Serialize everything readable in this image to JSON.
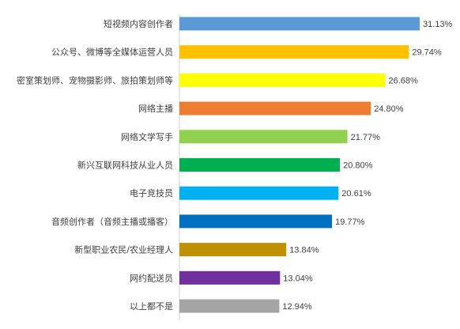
{
  "chart_data": {
    "type": "bar",
    "orientation": "horizontal",
    "categories": [
      "短视频内容创作者",
      "公众号、微博等全媒体运营人员",
      "密室策划师、宠物摄影师、旅拍策划师等",
      "网络主播",
      "网络文学写手",
      "新兴互联网科技从业人员",
      "电子竞技员",
      "音频创作者（音频主播或播客）",
      "新型职业农民/农业经理人",
      "网约配送员",
      "以上都不是"
    ],
    "values": [
      31.13,
      29.74,
      26.68,
      24.8,
      21.77,
      20.8,
      20.61,
      19.77,
      13.84,
      13.04,
      12.94
    ],
    "value_labels": [
      "31.13%",
      "29.74%",
      "26.68%",
      "24.80%",
      "21.77%",
      "20.80%",
      "20.61%",
      "19.77%",
      "13.84%",
      "13.04%",
      "12.94%"
    ],
    "colors": [
      "#5b9bd5",
      "#ffc000",
      "#ffff00",
      "#ed7d31",
      "#92d050",
      "#00b050",
      "#00b0f0",
      "#0070c0",
      "#bf9000",
      "#7030a0",
      "#a5a5a5"
    ],
    "xlim": [
      0,
      31.13
    ],
    "grid": false,
    "legend": "none"
  }
}
